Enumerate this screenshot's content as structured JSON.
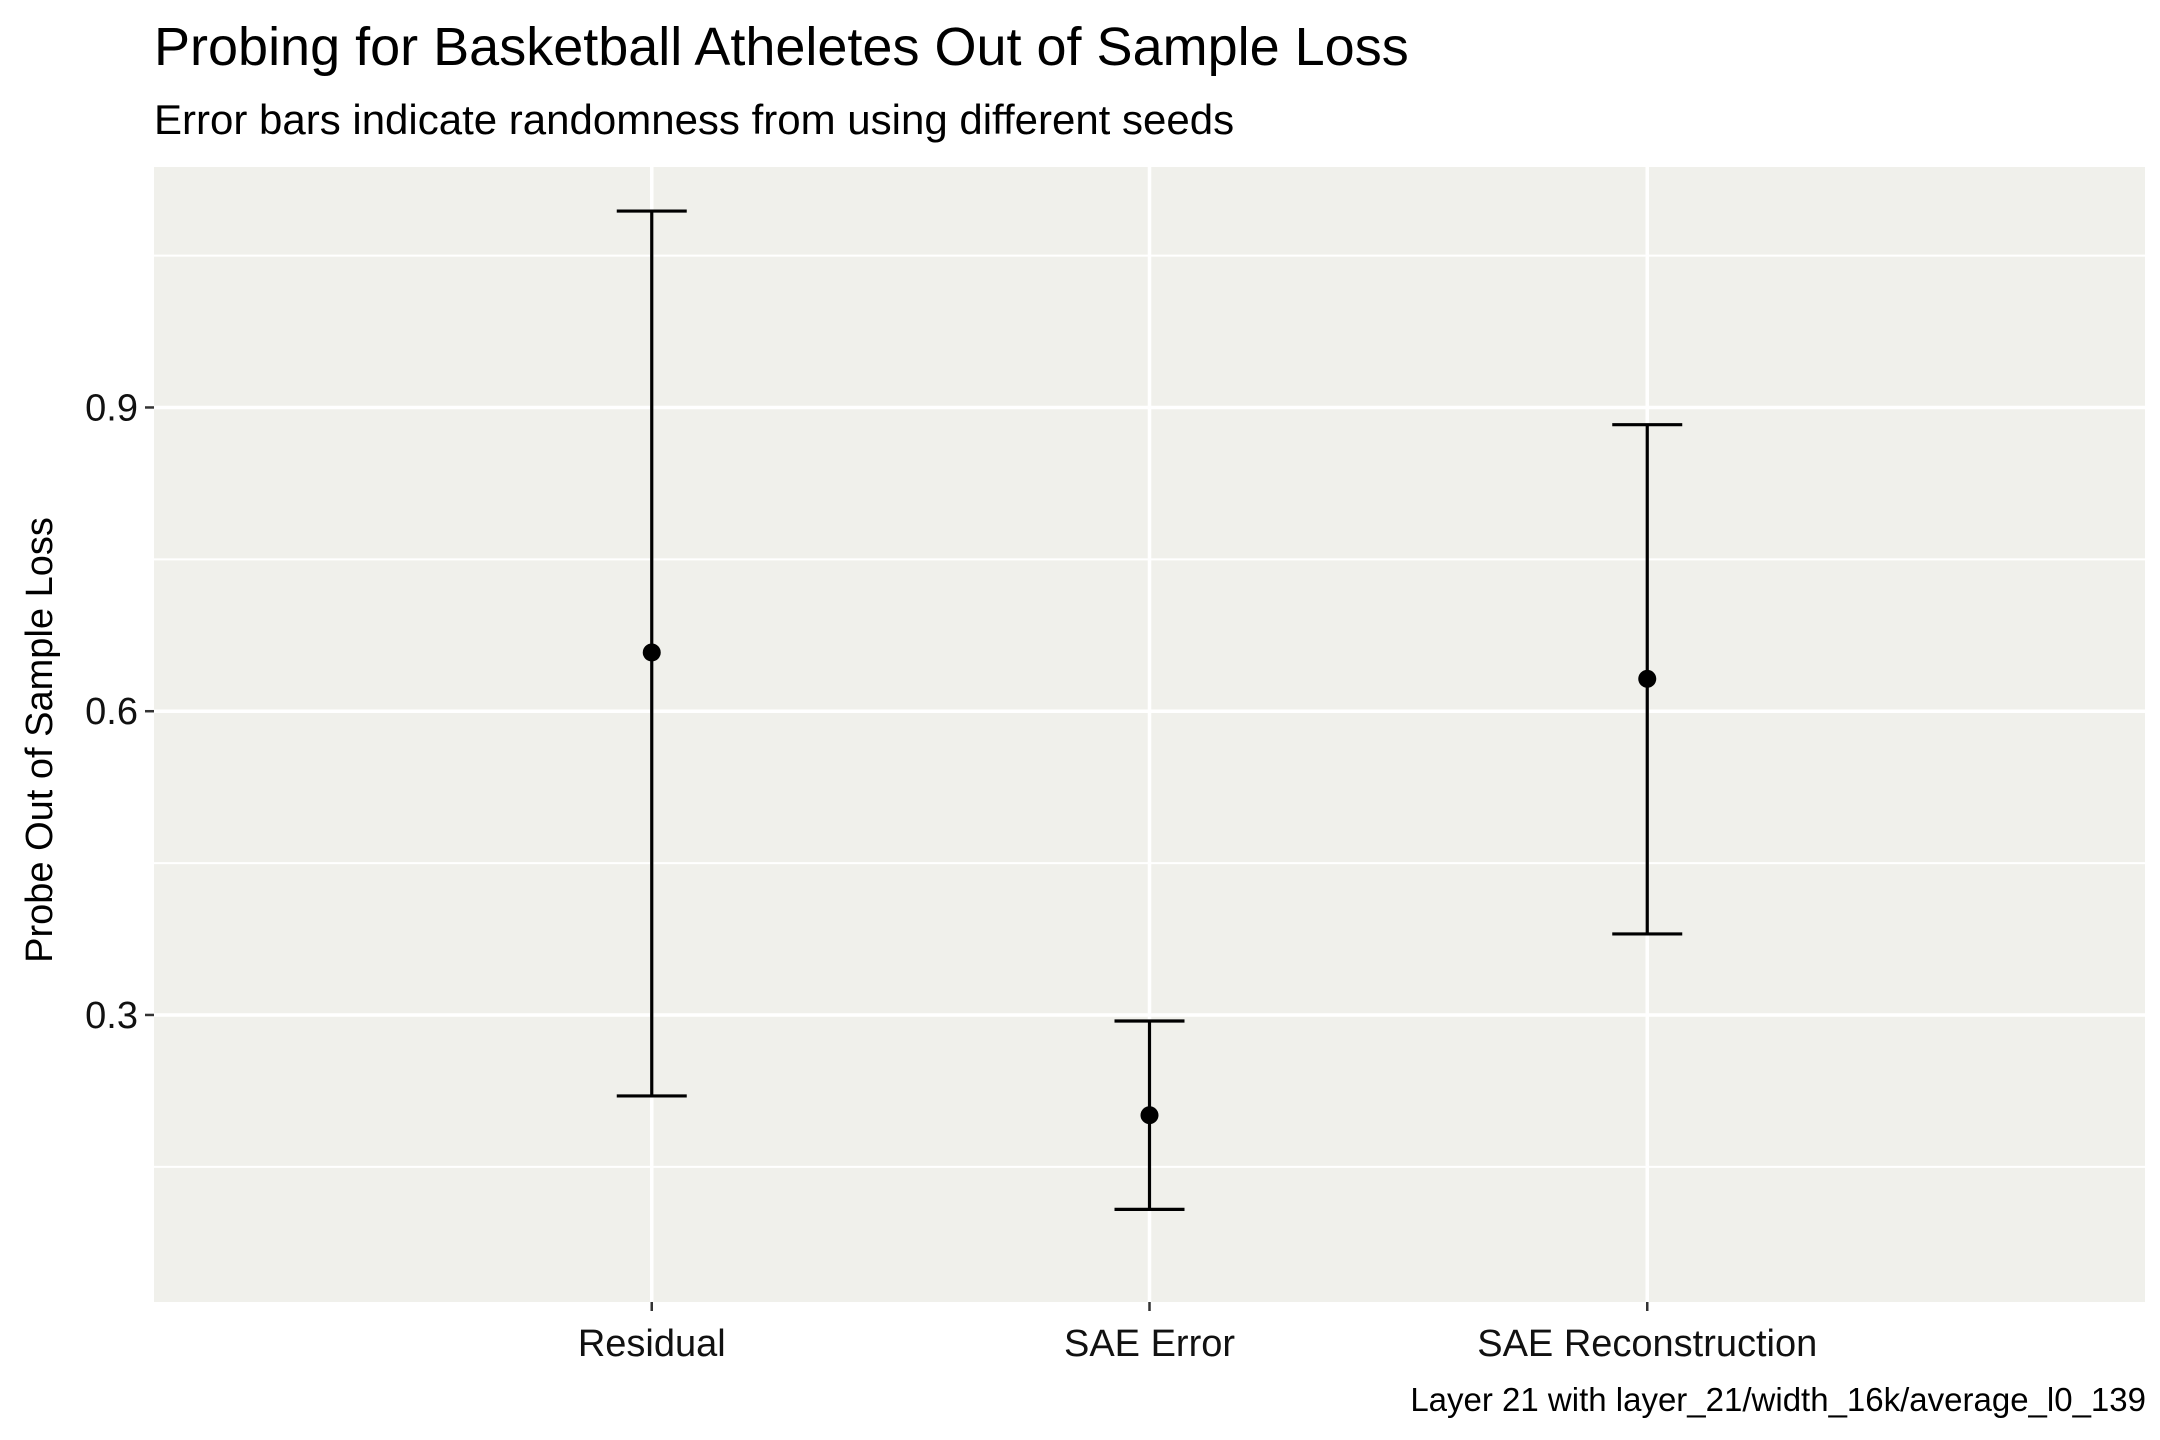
{
  "title": "Probing for Basketball Atheletes Out of Sample Loss",
  "subtitle": "Error bars indicate randomness from using different seeds",
  "caption": "Layer 21 with layer_21/width_16k/average_l0_139",
  "chart_data": {
    "type": "errorbar",
    "title": "Probing for Basketball Atheletes Out of Sample Loss",
    "subtitle": "Error bars indicate randomness from using different seeds",
    "xlabel": "",
    "ylabel": "Probe Out of Sample Loss",
    "categories": [
      "Residual",
      "SAE Error",
      "SAE Reconstruction"
    ],
    "points": [
      {
        "category": "Residual",
        "value": 0.658,
        "lower": 0.22,
        "upper": 1.094
      },
      {
        "category": "SAE Error",
        "value": 0.201,
        "lower": 0.108,
        "upper": 0.294
      },
      {
        "category": "SAE Reconstruction",
        "value": 0.632,
        "lower": 0.38,
        "upper": 0.883
      }
    ],
    "yticks": [
      0.3,
      0.6,
      0.9
    ],
    "ylim": [
      0.0165,
      1.1375
    ],
    "grid": true,
    "panel_background": "#f0f0eb",
    "grid_color": "#ffffff",
    "mark_color": "#000000"
  }
}
